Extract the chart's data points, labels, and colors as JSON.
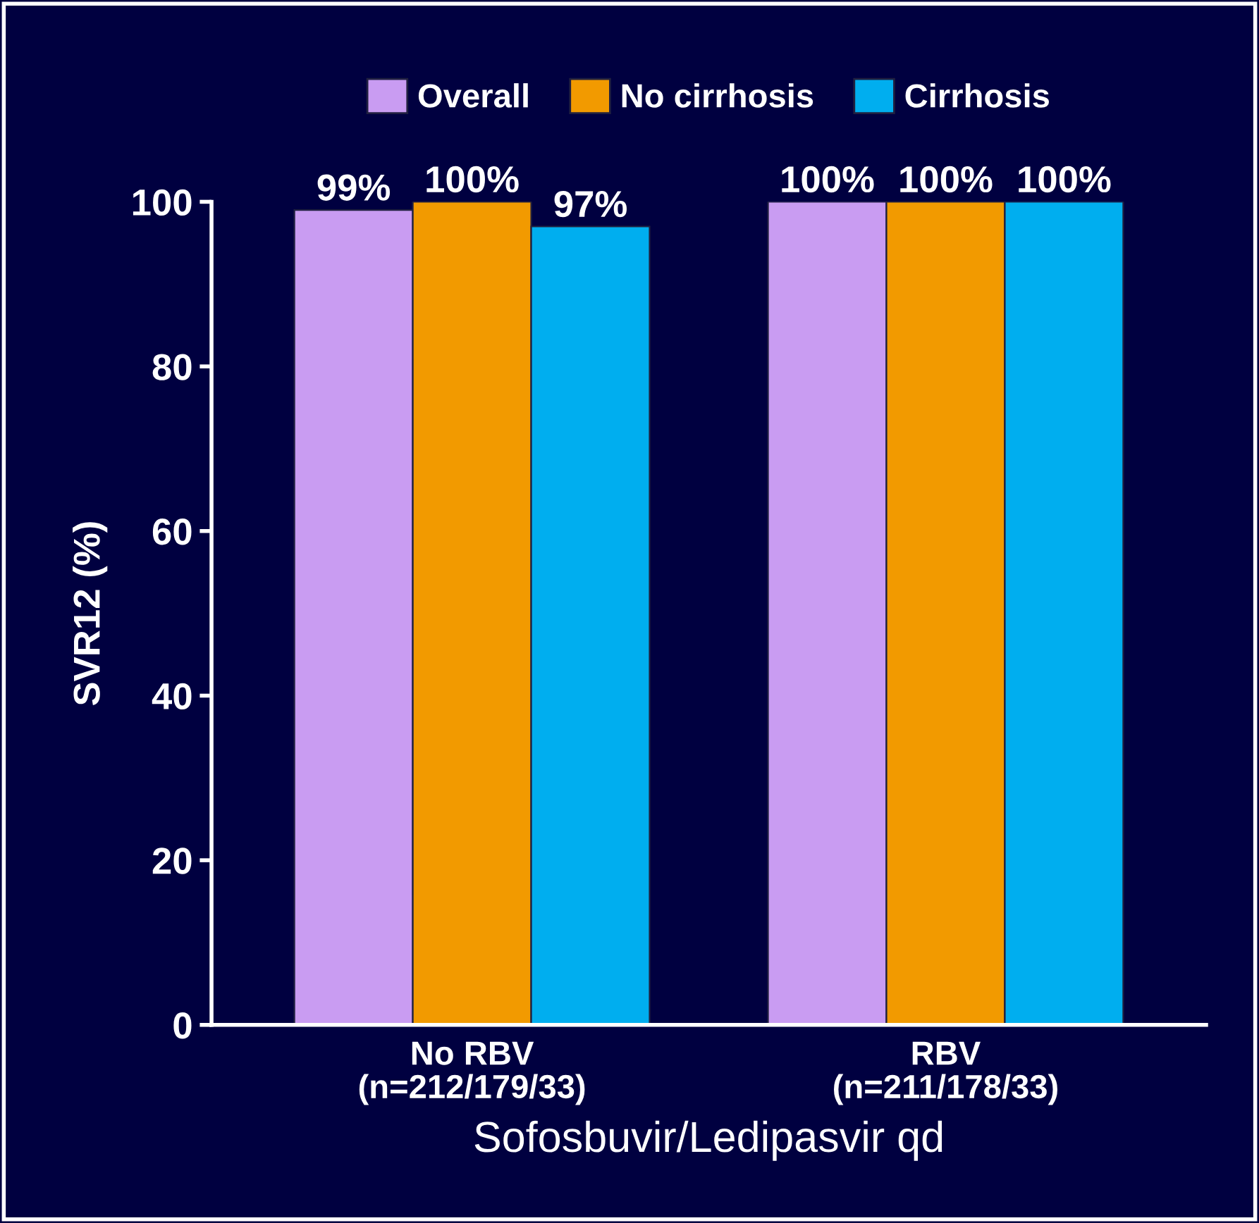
{
  "chart_data": {
    "type": "bar",
    "categories": [
      "No RBV\n(n=212/179/33)",
      "RBV\n(n=211/178/33)"
    ],
    "xlabel": "Sofosbuvir/Ledipasvir qd",
    "ylabel": "SVR12 (%)",
    "ylim": [
      0,
      100
    ],
    "yticks": [
      0,
      20,
      40,
      60,
      80,
      100
    ],
    "grid": false,
    "legend": "top",
    "series": [
      {
        "name": "Overall",
        "color": "#c99cf2",
        "values": [
          99,
          100
        ],
        "value_labels": [
          "99%",
          "100%"
        ]
      },
      {
        "name": "No cirrhosis",
        "color": "#f29a00",
        "values": [
          100,
          100
        ],
        "value_labels": [
          "100%",
          "100%"
        ]
      },
      {
        "name": "Cirrhosis",
        "color": "#00aeef",
        "values": [
          97,
          100
        ],
        "value_labels": [
          "97%",
          "100%"
        ]
      }
    ]
  }
}
